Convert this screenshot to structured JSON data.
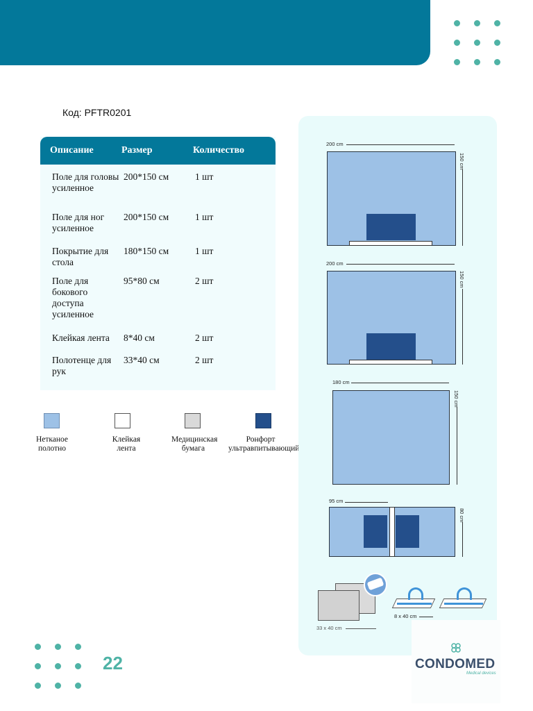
{
  "code_line": "Код: PFTR0201",
  "table": {
    "headers": [
      "Описание",
      "Размер",
      "Количество"
    ],
    "rows": [
      {
        "desc": "Поле для головы усиленное",
        "size": "200*150 см",
        "qty": "1 шт"
      },
      {
        "desc": "Поле для ног усиленное",
        "size": "200*150 см",
        "qty": "1 шт"
      },
      {
        "desc": "Покрытие для стола",
        "size": "180*150 см",
        "qty": "1 шт"
      },
      {
        "desc": "Поле для бокового доступа усиленное",
        "size": "95*80 см",
        "qty": "2 шт"
      },
      {
        "desc": "Клейкая лента",
        "size": "8*40 см",
        "qty": "2 шт"
      },
      {
        "desc": "Полотенце для рук",
        "size": "33*40 см",
        "qty": "2 шт"
      }
    ]
  },
  "legend": [
    {
      "label": "Нетканое полотно",
      "color": "#9dc1e6"
    },
    {
      "label": "Клейкая лента",
      "color": "#ffffff"
    },
    {
      "label": "Медицинская бумага",
      "color": "#d9d9d9"
    },
    {
      "label": "Ронфорт ультравпитывающий",
      "color": "#244f8b"
    }
  ],
  "diagrams": {
    "d1_width": "200 cm",
    "d1_height": "150 cm",
    "d2_width": "200 cm",
    "d2_height": "150 cm",
    "d3_width": "180 cm",
    "d3_height": "150 cm",
    "d4_width": "95 cm",
    "d4_height": "80 cm",
    "towel_size": "33 x 40 cm",
    "tape_size": "8 x 40 cm"
  },
  "page_number": "22",
  "brand": {
    "name": "CONDOMED",
    "tagline": "Medical devices"
  },
  "colors": {
    "primary": "#03789a",
    "accent": "#4fb3a6",
    "navy": "#244f8b",
    "light_blue": "#9dc1e6"
  }
}
